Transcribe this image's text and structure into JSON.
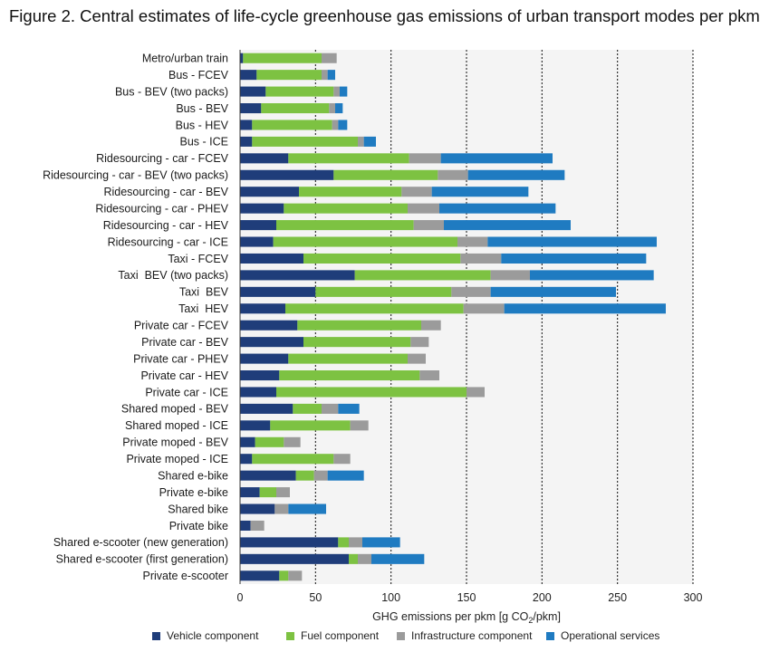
{
  "title": "Figure 2. Central estimates of life-cycle greenhouse gas emissions of urban transport modes per pkm",
  "chart_data": {
    "type": "bar",
    "orientation": "horizontal",
    "stacked": true,
    "xlabel_parts": {
      "pre": "GHG emissions per pkm [g CO",
      "sub": "2",
      "post": "/pkm]"
    },
    "xlim": [
      0,
      300
    ],
    "xticks": [
      0,
      50,
      100,
      150,
      200,
      250,
      300
    ],
    "grid": "vertical dotted",
    "legend_position": "bottom",
    "colors": {
      "vehicle": "#1f3d7a",
      "fuel": "#7dc242",
      "infrastructure": "#9b9b9b",
      "operational": "#1f7bc1"
    },
    "series": [
      {
        "key": "vehicle",
        "name": "Vehicle component"
      },
      {
        "key": "fuel",
        "name": "Fuel component"
      },
      {
        "key": "infrastructure",
        "name": "Infrastructure component"
      },
      {
        "key": "operational",
        "name": "Operational services"
      }
    ],
    "categories": [
      "Metro/urban train",
      "Bus - FCEV",
      "Bus - BEV (two packs)",
      "Bus - BEV",
      "Bus - HEV",
      "Bus - ICE",
      "Ridesourcing - car - FCEV",
      "Ridesourcing - car - BEV (two packs)",
      "Ridesourcing - car - BEV",
      "Ridesourcing - car - PHEV",
      "Ridesourcing - car - HEV",
      "Ridesourcing - car - ICE",
      "Taxi - FCEV",
      "Taxi  BEV (two packs)",
      "Taxi  BEV",
      "Taxi  HEV",
      "Private car - FCEV",
      "Private car - BEV",
      "Private car - PHEV",
      "Private car - HEV",
      "Private car - ICE",
      "Shared moped - BEV",
      "Shared moped - ICE",
      "Private moped - BEV",
      "Private moped - ICE",
      "Shared e-bike",
      "Private e-bike",
      "Shared bike",
      "Private bike",
      "Shared e-scooter (new generation)",
      "Shared e-scooter (first generation)",
      "Private e-scooter"
    ],
    "values": {
      "vehicle": [
        2,
        11,
        17,
        14,
        8,
        8,
        32,
        62,
        39,
        29,
        24,
        22,
        42,
        76,
        50,
        30,
        38,
        42,
        32,
        26,
        24,
        35,
        20,
        10,
        8,
        37,
        13,
        23,
        7,
        65,
        72,
        26
      ],
      "fuel": [
        52,
        43,
        45,
        45,
        53,
        70,
        80,
        69,
        68,
        82,
        91,
        122,
        104,
        90,
        90,
        118,
        82,
        71,
        79,
        93,
        126,
        19,
        53,
        19,
        54,
        12,
        11,
        0,
        0,
        7,
        6,
        6
      ],
      "infrastructure": [
        10,
        4,
        4,
        4,
        4,
        4,
        21,
        20,
        20,
        21,
        20,
        20,
        27,
        26,
        26,
        27,
        13,
        12,
        12,
        13,
        12,
        11,
        12,
        11,
        11,
        9,
        9,
        9,
        9,
        9,
        9,
        9
      ],
      "operational": [
        0,
        5,
        5,
        5,
        6,
        8,
        74,
        64,
        64,
        77,
        84,
        112,
        96,
        82,
        83,
        107,
        0,
        0,
        0,
        0,
        0,
        14,
        0,
        0,
        0,
        24,
        0,
        25,
        0,
        25,
        35,
        0
      ]
    }
  }
}
